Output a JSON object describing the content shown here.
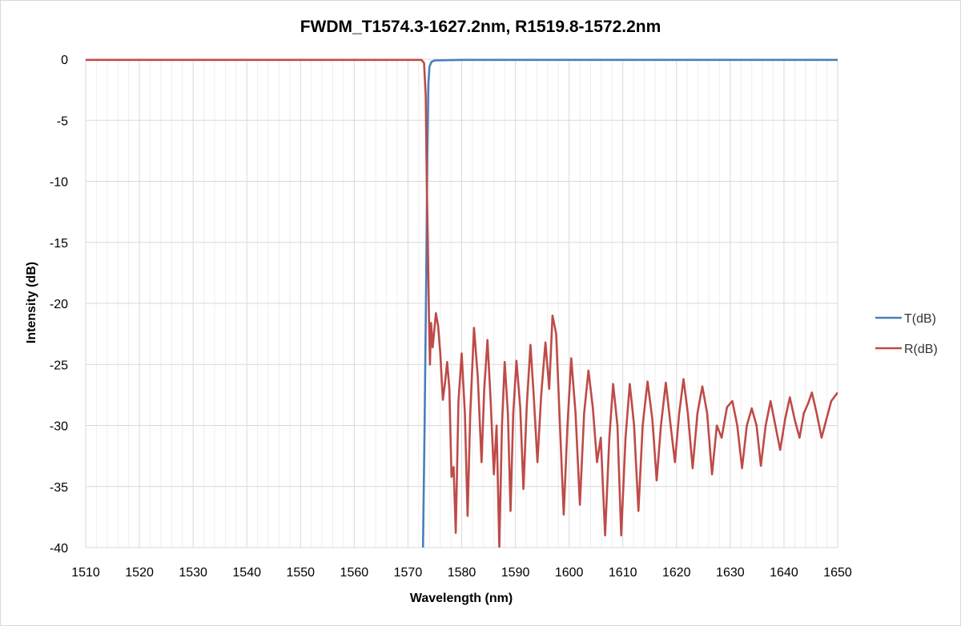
{
  "chart_data": {
    "type": "line",
    "title": "FWDM_T1574.3-1627.2nm, R1519.8-1572.2nm",
    "xlabel": "Wavelength (nm)",
    "ylabel": "Intensity (dB)",
    "xlim": [
      1510,
      1650
    ],
    "ylim": [
      -40,
      0
    ],
    "xticks": [
      1510,
      1520,
      1530,
      1540,
      1550,
      1560,
      1570,
      1580,
      1590,
      1600,
      1610,
      1620,
      1630,
      1640,
      1650
    ],
    "yticks": [
      0,
      -5,
      -10,
      -15,
      -20,
      -25,
      -30,
      -35,
      -40
    ],
    "grid": true,
    "legend_position": "right",
    "series": [
      {
        "name": "T(dB)",
        "color": "#4a7ebb",
        "points": [
          [
            1572.8,
            -40
          ],
          [
            1573.1,
            -30
          ],
          [
            1573.4,
            -18
          ],
          [
            1573.6,
            -8
          ],
          [
            1573.8,
            -2
          ],
          [
            1574.0,
            -0.6
          ],
          [
            1574.4,
            -0.2
          ],
          [
            1575,
            -0.1
          ],
          [
            1580,
            -0.05
          ],
          [
            1590,
            -0.05
          ],
          [
            1600,
            -0.05
          ],
          [
            1620,
            -0.05
          ],
          [
            1650,
            -0.05
          ]
        ]
      },
      {
        "name": "R(dB)",
        "color": "#be4b48",
        "points": [
          [
            1510,
            -0.05
          ],
          [
            1530,
            -0.05
          ],
          [
            1550,
            -0.05
          ],
          [
            1570,
            -0.05
          ],
          [
            1572.5,
            -0.05
          ],
          [
            1573.0,
            -0.3
          ],
          [
            1573.3,
            -3
          ],
          [
            1573.5,
            -10
          ],
          [
            1573.7,
            -15
          ],
          [
            1573.9,
            -21
          ],
          [
            1574.1,
            -25
          ],
          [
            1574.3,
            -21.6
          ],
          [
            1574.6,
            -23.6
          ],
          [
            1574.9,
            -22.2
          ],
          [
            1575.2,
            -20.8
          ],
          [
            1575.6,
            -21.8
          ],
          [
            1576.0,
            -24.0
          ],
          [
            1576.5,
            -27.9
          ],
          [
            1576.9,
            -26.5
          ],
          [
            1577.3,
            -24.8
          ],
          [
            1577.7,
            -27.0
          ],
          [
            1578.1,
            -34.2
          ],
          [
            1578.5,
            -33.4
          ],
          [
            1578.9,
            -38.8
          ],
          [
            1579.4,
            -28.0
          ],
          [
            1580.0,
            -24.1
          ],
          [
            1580.6,
            -29.0
          ],
          [
            1581.1,
            -37.4
          ],
          [
            1581.6,
            -29.0
          ],
          [
            1582.3,
            -22.0
          ],
          [
            1583.0,
            -26.0
          ],
          [
            1583.7,
            -33.0
          ],
          [
            1584.2,
            -27.0
          ],
          [
            1584.8,
            -23.0
          ],
          [
            1585.4,
            -28.0
          ],
          [
            1586.0,
            -34.0
          ],
          [
            1586.5,
            -30.0
          ],
          [
            1587.0,
            -40.0
          ],
          [
            1587.5,
            -30.0
          ],
          [
            1588.0,
            -24.8
          ],
          [
            1588.6,
            -29.0
          ],
          [
            1589.1,
            -37.0
          ],
          [
            1589.6,
            -29.0
          ],
          [
            1590.2,
            -24.7
          ],
          [
            1590.9,
            -28.5
          ],
          [
            1591.5,
            -35.2
          ],
          [
            1592.1,
            -28.5
          ],
          [
            1592.8,
            -23.4
          ],
          [
            1593.4,
            -27.5
          ],
          [
            1594.1,
            -33.0
          ],
          [
            1594.8,
            -27.5
          ],
          [
            1595.6,
            -23.2
          ],
          [
            1596.3,
            -27.0
          ],
          [
            1596.9,
            -21.0
          ],
          [
            1597.6,
            -22.5
          ],
          [
            1598.3,
            -30.0
          ],
          [
            1599.0,
            -37.3
          ],
          [
            1599.7,
            -30.0
          ],
          [
            1600.4,
            -24.5
          ],
          [
            1601.2,
            -29.0
          ],
          [
            1602.0,
            -36.5
          ],
          [
            1602.8,
            -29.0
          ],
          [
            1603.6,
            -25.5
          ],
          [
            1604.4,
            -28.5
          ],
          [
            1605.2,
            -33.0
          ],
          [
            1605.9,
            -31.0
          ],
          [
            1606.7,
            -39.0
          ],
          [
            1607.5,
            -31.0
          ],
          [
            1608.2,
            -26.6
          ],
          [
            1609.0,
            -30.0
          ],
          [
            1609.7,
            -39.0
          ],
          [
            1610.5,
            -31.0
          ],
          [
            1611.3,
            -26.6
          ],
          [
            1612.1,
            -30.0
          ],
          [
            1612.9,
            -37.0
          ],
          [
            1613.7,
            -30.0
          ],
          [
            1614.6,
            -26.4
          ],
          [
            1615.5,
            -29.5
          ],
          [
            1616.3,
            -34.5
          ],
          [
            1617.1,
            -30.0
          ],
          [
            1618.0,
            -26.5
          ],
          [
            1618.9,
            -30.0
          ],
          [
            1619.7,
            -33.0
          ],
          [
            1620.5,
            -29.0
          ],
          [
            1621.3,
            -26.2
          ],
          [
            1622.1,
            -29.0
          ],
          [
            1623.0,
            -33.5
          ],
          [
            1623.9,
            -29.0
          ],
          [
            1624.8,
            -26.8
          ],
          [
            1625.7,
            -29.0
          ],
          [
            1626.6,
            -34.0
          ],
          [
            1627.5,
            -30.0
          ],
          [
            1628.4,
            -31.0
          ],
          [
            1629.4,
            -28.5
          ],
          [
            1630.4,
            -28.0
          ],
          [
            1631.3,
            -30.0
          ],
          [
            1632.2,
            -33.5
          ],
          [
            1633.1,
            -30.0
          ],
          [
            1634.0,
            -28.6
          ],
          [
            1634.9,
            -30.0
          ],
          [
            1635.7,
            -33.3
          ],
          [
            1636.6,
            -30.0
          ],
          [
            1637.5,
            -28.0
          ],
          [
            1638.4,
            -30.0
          ],
          [
            1639.3,
            -32.0
          ],
          [
            1640.2,
            -29.5
          ],
          [
            1641.1,
            -27.7
          ],
          [
            1642.0,
            -29.5
          ],
          [
            1642.9,
            -31.0
          ],
          [
            1643.7,
            -29.0
          ],
          [
            1644.5,
            -28.2
          ],
          [
            1645.2,
            -27.3
          ],
          [
            1646.1,
            -29.0
          ],
          [
            1647.0,
            -31.0
          ],
          [
            1647.9,
            -29.5
          ],
          [
            1648.8,
            -28.0
          ],
          [
            1650,
            -27.3
          ]
        ]
      }
    ]
  }
}
